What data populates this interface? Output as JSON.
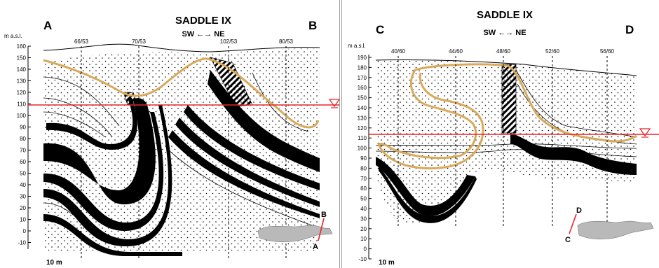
{
  "panels": [
    {
      "title": "SADDLE IX",
      "direction": "SW ←→ NE",
      "corner_left": "A",
      "corner_right": "B",
      "axis_unit": "m a.s.l.",
      "y_ticks": [
        "160",
        "150",
        "140",
        "130",
        "120",
        "110",
        "100",
        "90",
        "80",
        "70",
        "60",
        "50",
        "40",
        "30",
        "20",
        "10",
        "0",
        "-10"
      ],
      "boreholes": [
        "66/53",
        "70/53",
        "102/53",
        "80/53"
      ],
      "scale": "10 m",
      "map_labels": [
        "B",
        "A"
      ]
    },
    {
      "title": "SADDLE IX",
      "direction": "SW ←→ NE",
      "corner_left": "C",
      "corner_right": "D",
      "axis_unit": "m a.s.l.",
      "y_ticks": [
        "190",
        "180",
        "170",
        "160",
        "150",
        "140",
        "130",
        "120",
        "110",
        "100",
        "90",
        "80",
        "70",
        "60",
        "50",
        "40",
        "30",
        "20",
        "10",
        "0",
        "-10"
      ],
      "boreholes": [
        "40/60",
        "44/60",
        "48/60",
        "52/60",
        "56/60"
      ],
      "scale": "10 m",
      "map_labels": [
        "D",
        "C"
      ]
    }
  ],
  "colors": {
    "water_level": "#e8262b",
    "contour": "#d9a95a",
    "layer": "#000000"
  }
}
